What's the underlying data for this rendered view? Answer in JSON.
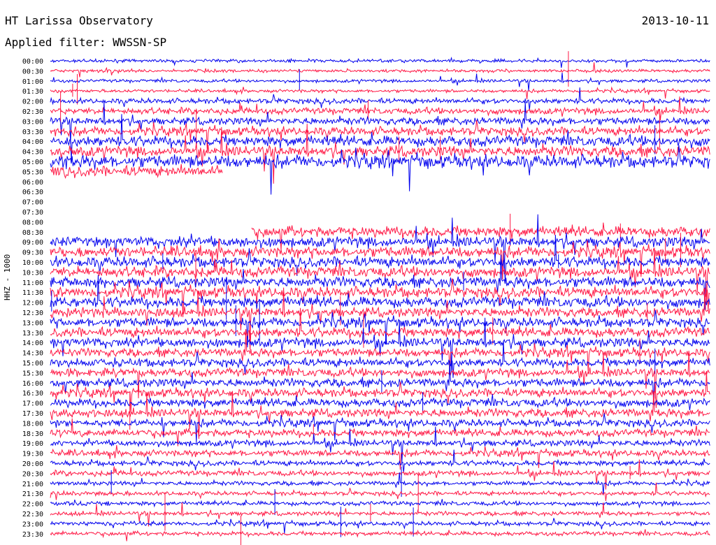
{
  "header": {
    "title": "HT Larissa Observatory",
    "date": "2013-10-11",
    "filter": "Applied filter: WWSSN-SP"
  },
  "chart_data": {
    "type": "line",
    "title": "HT Larissa Observatory",
    "date": "2013-10-11",
    "filter": "WWSSN-SP",
    "ylabel": "HHZ - 1000",
    "row_labels": [
      "00:00",
      "00:30",
      "01:00",
      "01:30",
      "02:00",
      "02:30",
      "03:00",
      "03:30",
      "04:00",
      "04:30",
      "05:00",
      "05:30",
      "06:00",
      "06:30",
      "07:00",
      "07:30",
      "08:00",
      "08:30",
      "09:00",
      "09:30",
      "10:00",
      "10:30",
      "11:00",
      "11:30",
      "12:00",
      "12:30",
      "13:00",
      "13:30",
      "14:00",
      "14:30",
      "15:00",
      "15:30",
      "16:00",
      "16:30",
      "17:00",
      "17:30",
      "18:00",
      "18:30",
      "19:00",
      "19:30",
      "20:00",
      "20:30",
      "21:00",
      "21:30",
      "22:00",
      "22:30",
      "23:00",
      "23:30"
    ],
    "colors": [
      "#0000ee",
      "#ff1744"
    ],
    "gap": [
      "05:30",
      "08:30"
    ],
    "noise_level": [
      1.5,
      1.5,
      1.5,
      1.5,
      2.5,
      3,
      3.5,
      4,
      5,
      5,
      6,
      5,
      0,
      0,
      0,
      0,
      0,
      5,
      5,
      5,
      5,
      5,
      5,
      5,
      5,
      4.5,
      4.5,
      4.5,
      4.5,
      4,
      4,
      4,
      4,
      4,
      4,
      4,
      3.5,
      3.5,
      3,
      3,
      2.5,
      2.5,
      2,
      2,
      2,
      2,
      2,
      2
    ]
  }
}
